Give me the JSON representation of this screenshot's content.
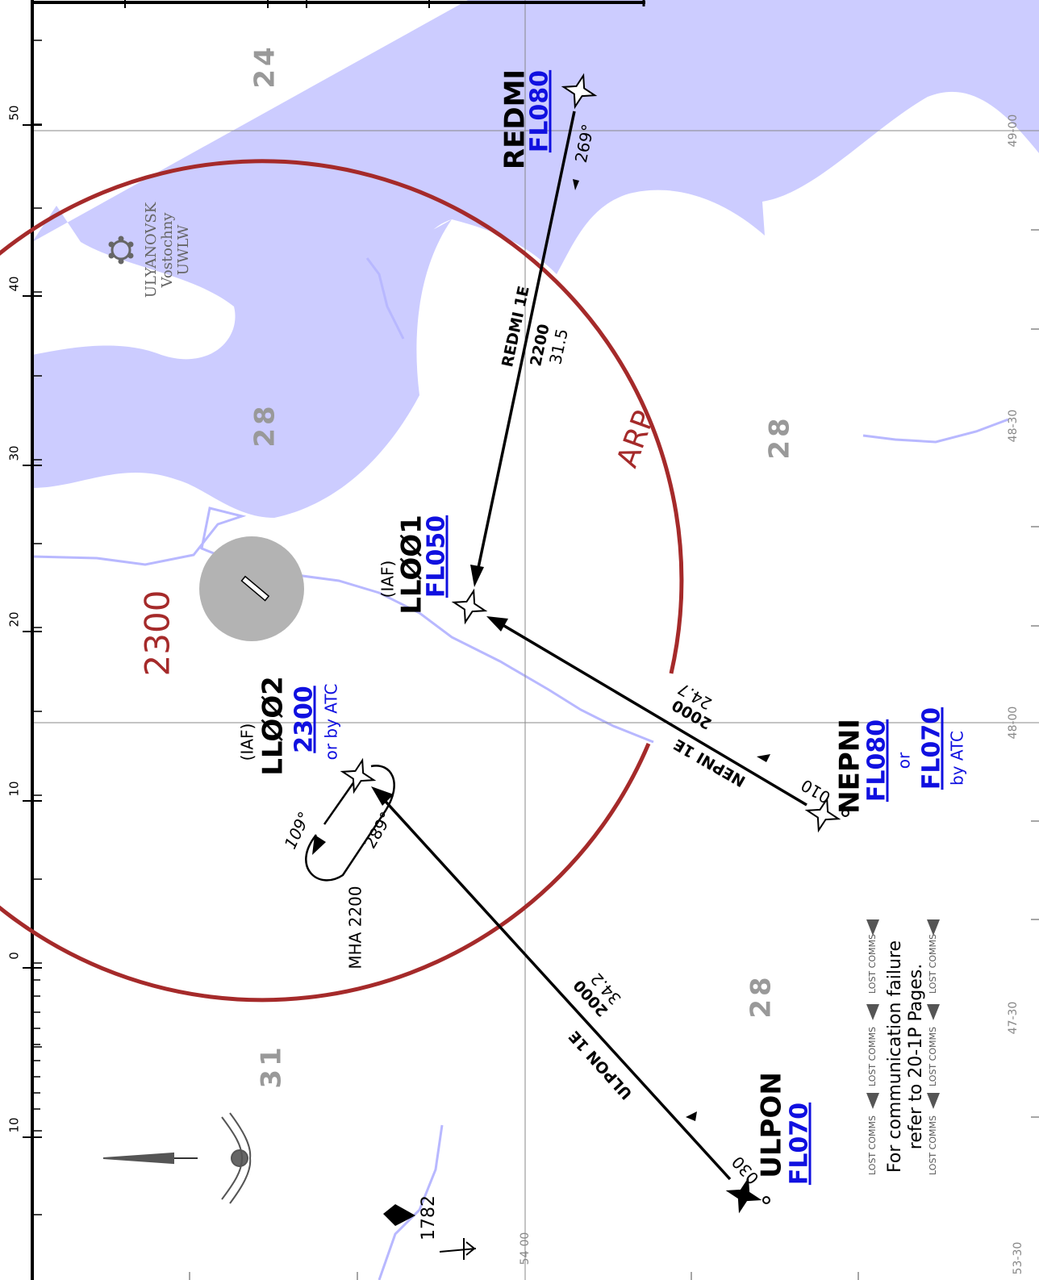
{
  "waypoints": [
    {
      "name": "REDMI",
      "altitude": "FL080"
    },
    {
      "name": "LLØØ1",
      "role": "(IAF)",
      "altitude": "FL050"
    },
    {
      "name": "LLØØ2",
      "role": "(IAF)",
      "altitude": "2300",
      "note": "or by ATC"
    },
    {
      "name": "NEPNI",
      "altitude": "FL080",
      "connector": "or",
      "altitude_alt": "FL070",
      "note": "by ATC"
    },
    {
      "name": "ULPON",
      "altitude": "FL070"
    }
  ],
  "routes": [
    {
      "name": "REDMI 1E",
      "altitude": "2200",
      "distance": "31.5",
      "track": "269°"
    },
    {
      "name": "NEPNI 1E",
      "altitude": "2000",
      "distance": "24.7",
      "track": "010"
    },
    {
      "name": "ULPON 1E",
      "altitude": "2000",
      "distance": "34.2",
      "track": "030"
    }
  ],
  "holding": {
    "outbound": "109°",
    "inbound": "289°",
    "mha": "MHA 2200"
  },
  "airport": {
    "name": "ULYANOVSK",
    "subname": "Vostochny",
    "icao": "UWLW",
    "arp": "ARP"
  },
  "msa": "2300",
  "grid_mora": [
    "24",
    "28",
    "28",
    "28",
    "31"
  ],
  "obstacle": "1782",
  "lost_comms": {
    "label": "LOST COMMS",
    "lines": [
      "For communication failure",
      "refer to 20-1P Pages."
    ]
  },
  "scale_labels": [
    "50",
    "40",
    "30",
    "20",
    "10",
    "0",
    "10"
  ],
  "lat_labels": [
    "49-00",
    "48-30",
    "48-00",
    "47-30"
  ],
  "lon_labels": [
    "54-00",
    "53-30"
  ]
}
